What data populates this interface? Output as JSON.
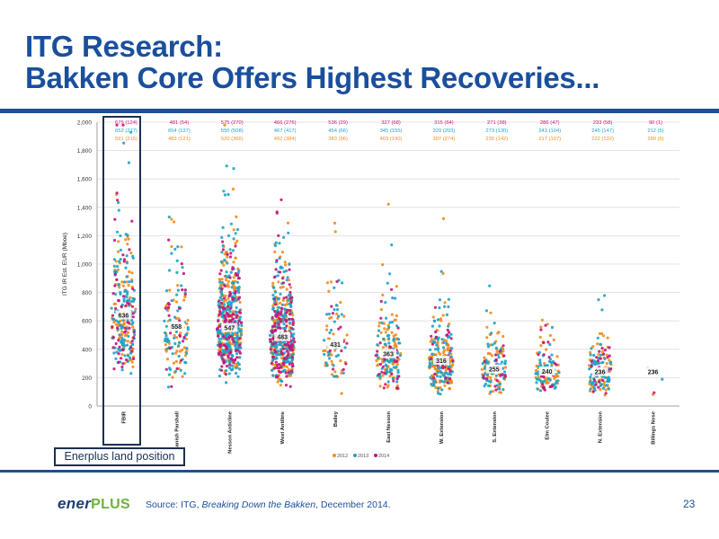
{
  "slide": {
    "title_line1": "ITG Research:",
    "title_line2": "Bakken Core Offers Highest Recoveries...",
    "source_prefix": "Source:  ITG, ",
    "source_title": "Breaking Down the Bakken",
    "source_suffix": ", December 2014.",
    "page_number": "23",
    "logo_ener": "ener",
    "logo_plus": "PLUS",
    "highlight_label": "Enerplus land position",
    "brand_color": "#1a4f9c",
    "rule_color": "#1f4e92"
  },
  "chart_data": {
    "type": "scatter",
    "title": "",
    "ylabel": "ITG IR Est. EUR (Mboe)",
    "xlabel": "",
    "ylim": [
      0,
      2000
    ],
    "yticks": [
      "0",
      "200",
      "400",
      "600",
      "800",
      "1,000",
      "1,200",
      "1,400",
      "1,600",
      "1,800",
      "2,000"
    ],
    "grid": true,
    "legend_position": "bottom-center",
    "series": [
      {
        "name": "2012",
        "color": "#f28c1c"
      },
      {
        "name": "2013",
        "color": "#1ca3c8"
      },
      {
        "name": "2014",
        "color": "#c4157a"
      }
    ],
    "categories": [
      "FBIR",
      "Sanish Parshall",
      "Nesson Anticline",
      "West Antiline",
      "Bailey",
      "East Nesson",
      "W. Extension",
      "S. Extension",
      "Elm Coulee",
      "N. Extension",
      "Billings Nose"
    ],
    "medians": [
      636,
      558,
      547,
      483,
      431,
      363,
      316,
      255,
      240,
      236,
      236
    ],
    "header_2014": [
      "675 (124)",
      "481 (54)",
      "575 (270)",
      "466 (276)",
      "536 (29)",
      "327 (68)",
      "315 (64)",
      "271 (38)",
      "286 (47)",
      "233 (58)",
      "90 (1)"
    ],
    "header_2013": [
      "652 (277)",
      "654 (137)",
      "550 (508)",
      "467 (417)",
      "454 (66)",
      "345 (155)",
      "329 (203)",
      "273 (130)",
      "243 (104)",
      "245 (147)",
      "212 (5)"
    ],
    "header_2012": [
      "591 (215)",
      "483 (121)",
      "520 (366)",
      "492 (384)",
      "383 (96)",
      "403 (190)",
      "307 (274)",
      "235 (142)",
      "217 (107)",
      "222 (132)",
      "289 (5)"
    ]
  }
}
